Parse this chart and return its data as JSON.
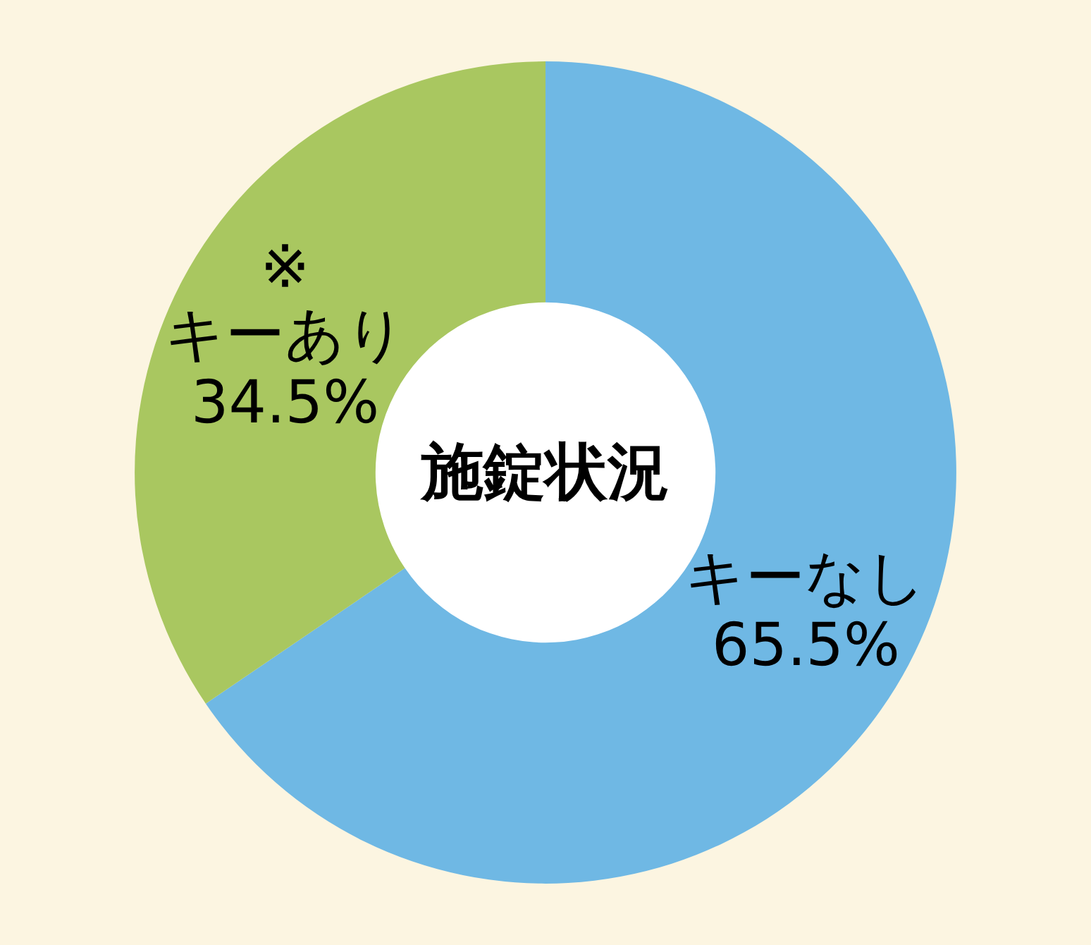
{
  "chart_data": {
    "type": "donut",
    "title": "施錠状況",
    "categories": [
      "キーなし",
      "キーあり"
    ],
    "values": [
      65.5,
      34.5
    ],
    "colors": [
      "#6fb8e4",
      "#a9c760"
    ],
    "value_labels": [
      "65.5%",
      "34.5%"
    ],
    "annotations": [
      {
        "text": "※",
        "x": "キーあり"
      }
    ]
  }
}
